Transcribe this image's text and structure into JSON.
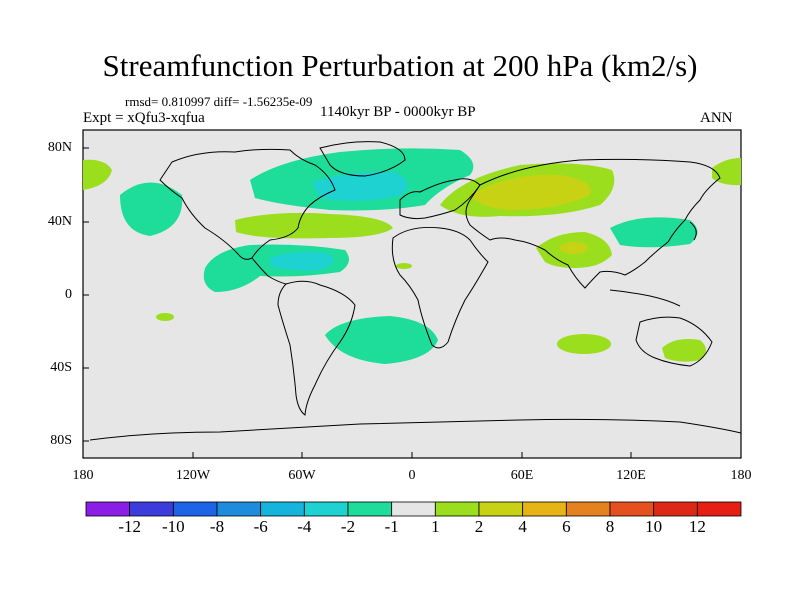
{
  "title": "Streamfunction Perturbation at 200 hPa (km2/s)",
  "stats": "rmsd= 0.810997 diff= -1.56235e-09",
  "experiment": "Expt = xQfu3-xqfua",
  "period": "1140kyr BP - 0000kyr BP",
  "season": "ANN",
  "lat_labels": [
    "80N",
    "40N",
    "0",
    "40S",
    "80S"
  ],
  "lon_labels": [
    "180",
    "120W",
    "60W",
    "0",
    "60E",
    "120E",
    "180"
  ],
  "colorbar": {
    "labels": [
      "-12",
      "-10",
      "-8",
      "-6",
      "-4",
      "-2",
      "-1",
      "1",
      "2",
      "4",
      "6",
      "8",
      "10",
      "12"
    ],
    "colors": [
      "#8a1ee6",
      "#3c3cdc",
      "#1e64e6",
      "#1e8cdc",
      "#14b4dc",
      "#1ed2d2",
      "#1edc9a",
      "#e6e6e6",
      "#9ade1e",
      "#c8d214",
      "#e6b414",
      "#e6821e",
      "#e6501e",
      "#dc2814",
      "#e61e14"
    ]
  },
  "map": {
    "background": "#e6e6e6",
    "anomalies": [
      {
        "name": "north-atlantic-negative",
        "level": "-2",
        "color": "#1edc9a"
      },
      {
        "name": "north-atlantic-core",
        "level": "-4",
        "color": "#1ed2d2"
      },
      {
        "name": "eurasia-positive",
        "level": "2",
        "color": "#9ade1e"
      },
      {
        "name": "eurasia-core",
        "level": "4",
        "color": "#c8d214"
      },
      {
        "name": "south-asia-positive",
        "level": "2",
        "color": "#9ade1e"
      },
      {
        "name": "south-asia-core",
        "level": "4",
        "color": "#c8d214"
      }
    ]
  }
}
